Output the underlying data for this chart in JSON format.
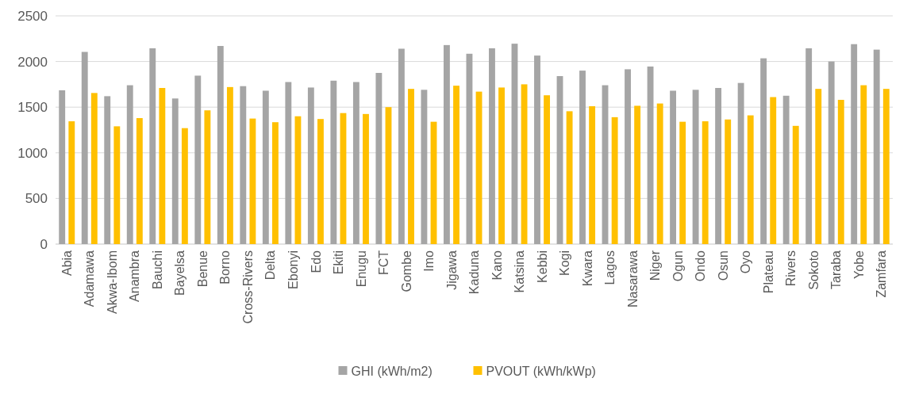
{
  "chart_data": {
    "type": "bar",
    "categories": [
      "Abia",
      "Adamawa",
      "Akwa-Ibom",
      "Anambra",
      "Bauchi",
      "Bayelsa",
      "Benue",
      "Borno",
      "Cross-Rivers",
      "Delta",
      "Ebonyi",
      "Edo",
      "Ekiti",
      "Enugu",
      "FCT",
      "Gombe",
      "Imo",
      "Jigawa",
      "Kaduna",
      "Kano",
      "Katsina",
      "Kebbi",
      "Kogi",
      "Kwara",
      "Lagos",
      "Nasarawa",
      "Niger",
      "Ogun",
      "Ondo",
      "Osun",
      "Oyo",
      "Plateau",
      "Rivers",
      "Sokoto",
      "Taraba",
      "Yobe",
      "Zamfara"
    ],
    "series": [
      {
        "name": "GHI (kWh/m2)",
        "color": "#a5a5a5",
        "values": [
          1685,
          2105,
          1620,
          1740,
          2145,
          1595,
          1845,
          2170,
          1730,
          1680,
          1775,
          1715,
          1790,
          1775,
          1875,
          2140,
          1690,
          2180,
          2085,
          2145,
          2195,
          2065,
          1840,
          1900,
          1740,
          1915,
          1945,
          1680,
          1690,
          1710,
          1765,
          2035,
          1625,
          2145,
          2000,
          2190,
          2130
        ]
      },
      {
        "name": "PVOUT (kWh/kWp)",
        "color": "#ffc000",
        "values": [
          1345,
          1655,
          1290,
          1380,
          1710,
          1270,
          1465,
          1720,
          1375,
          1335,
          1400,
          1370,
          1435,
          1425,
          1500,
          1700,
          1340,
          1735,
          1670,
          1715,
          1750,
          1630,
          1455,
          1510,
          1390,
          1515,
          1540,
          1340,
          1345,
          1365,
          1410,
          1610,
          1295,
          1700,
          1580,
          1740,
          1700
        ]
      }
    ],
    "ylim": [
      0,
      2500
    ],
    "yticks": [
      0,
      500,
      1000,
      1500,
      2000,
      2500
    ],
    "grid": "y",
    "legend": "bottom"
  }
}
